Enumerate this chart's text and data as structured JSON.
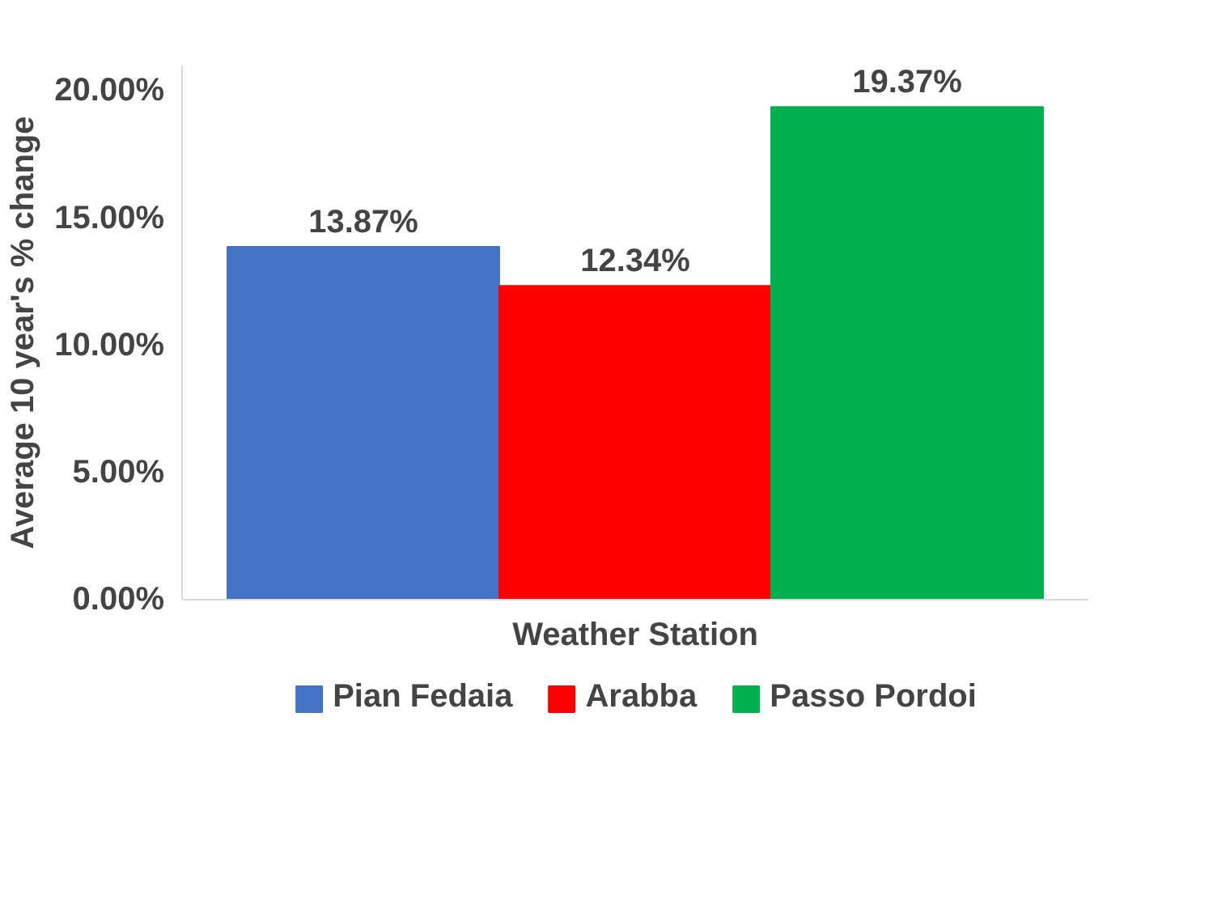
{
  "chart_data": {
    "type": "bar",
    "xlabel": "Weather Station",
    "ylabel": "Average 10 year's % change",
    "categories": [
      null
    ],
    "series": [
      {
        "name": "Pian Fedaia",
        "color": "#4472c4",
        "values": [
          13.87
        ],
        "value_labels": [
          "13.87%"
        ]
      },
      {
        "name": "Arabba",
        "color": "#ff0000",
        "values": [
          12.34
        ],
        "value_labels": [
          "12.34%"
        ]
      },
      {
        "name": "Passo Pordoi",
        "color": "#00b050",
        "values": [
          19.37
        ],
        "value_labels": [
          "19.37%"
        ]
      }
    ],
    "ylim": [
      0,
      21
    ],
    "yticks": [
      {
        "value": 0,
        "label": "0.00%"
      },
      {
        "value": 5,
        "label": "5.00%"
      },
      {
        "value": 10,
        "label": "10.00%"
      },
      {
        "value": 15,
        "label": "15.00%"
      },
      {
        "value": 20,
        "label": "20.00%"
      }
    ],
    "tick_labels": "y",
    "grid": false,
    "legend": "bottom"
  }
}
